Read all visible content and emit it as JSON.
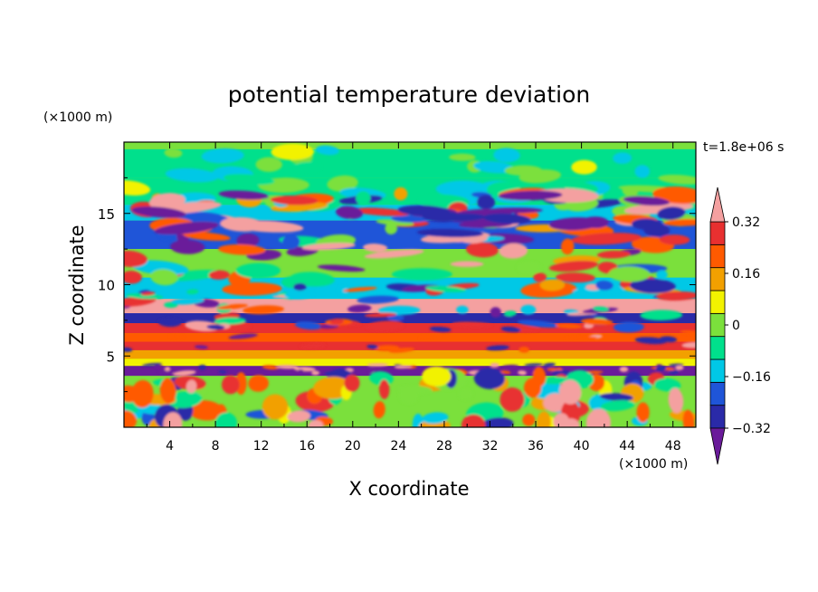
{
  "chart_data": {
    "type": "heatmap",
    "title": "potential temperature deviation",
    "xlabel": "X coordinate",
    "ylabel": "Z coordinate",
    "x_unit": "(×1000 m)",
    "y_unit": "(×1000 m)",
    "time_label": "t=1.8e+06 s",
    "xlim": [
      0,
      50
    ],
    "ylim": [
      0,
      20
    ],
    "x_ticks": [
      4,
      8,
      12,
      16,
      20,
      24,
      28,
      32,
      36,
      40,
      44,
      48
    ],
    "y_ticks": [
      5,
      10,
      15
    ],
    "colorbar": {
      "levels": [
        -0.4,
        -0.32,
        -0.24,
        -0.16,
        -0.08,
        0,
        0.08,
        0.16,
        0.24,
        0.32,
        0.4
      ],
      "tick_labels": [
        "0.32",
        "0.16",
        "0",
        "−0.16",
        "−0.32"
      ],
      "tick_values": [
        0.32,
        0.16,
        0,
        -0.16,
        -0.32
      ],
      "colors": [
        "#6a1b9a",
        "#2a2aa8",
        "#1f55d8",
        "#00c8e6",
        "#00e08c",
        "#7be03c",
        "#f2f200",
        "#f2a000",
        "#ff5a00",
        "#e83030",
        "#f4a0a0"
      ],
      "extend": "both"
    },
    "grid": false,
    "legend": "colorbar-right"
  }
}
